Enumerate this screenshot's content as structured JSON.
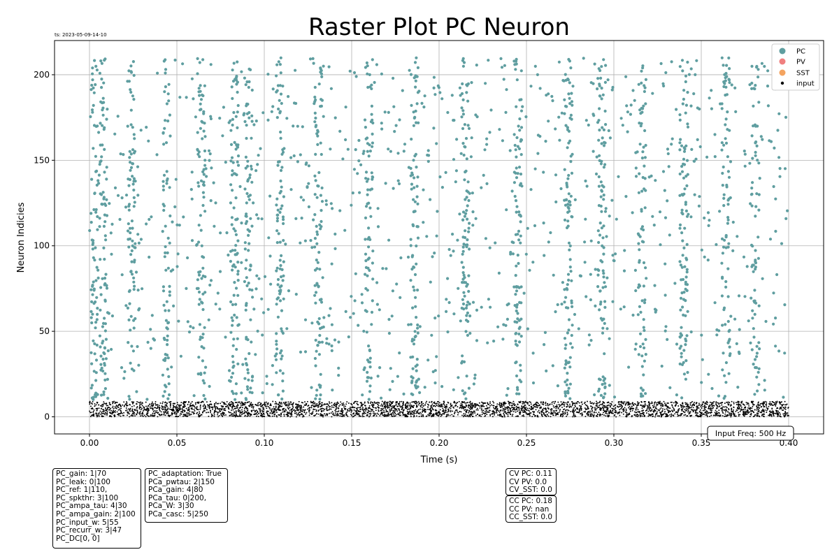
{
  "timestamp": "ts: 2023-05-09-14-10",
  "input_freq": "Input Freq: 500 Hz",
  "param_boxes": {
    "pc": [
      "PC_gain: 1|70",
      "PC_leak: 0|100",
      "PC_ref: 1|110,",
      "PC_spkthr: 3|100",
      "PC_ampa_tau: 4|30",
      "PC_ampa_gain: 2|100",
      "PC_input_w: 5|55",
      "PC_recurr_w: 3|47",
      "PC_DC[0, 0]"
    ],
    "pca": [
      "PC_adaptation: True",
      "PCa_pwtau: 2|150",
      "PCa_gain: 4|80",
      "PCa_tau: 0|200,",
      "PCa_W: 3|30",
      "PCa_casc: 5|250"
    ],
    "cv": [
      "CV PC: 0.11",
      "CV PV: 0.0",
      "CV_SST: 0.0"
    ],
    "cc": [
      "CC PC: 0.18",
      "CC PV: nan",
      "CC_SST: 0.0"
    ]
  },
  "chart_data": {
    "type": "scatter",
    "title": "Raster Plot PC Neuron",
    "xlabel": "Time (s)",
    "ylabel": "Neuron Indicies",
    "xlim": [
      -0.02,
      0.42
    ],
    "ylim": [
      -10,
      220
    ],
    "xticks": [
      0.0,
      0.05,
      0.1,
      0.15,
      0.2,
      0.25,
      0.3,
      0.35,
      0.4
    ],
    "xtick_labels": [
      "0.00",
      "0.05",
      "0.10",
      "0.15",
      "0.20",
      "0.25",
      "0.30",
      "0.35",
      "0.40"
    ],
    "yticks": [
      0,
      50,
      100,
      150,
      200
    ],
    "ytick_labels": [
      "0",
      "50",
      "100",
      "150",
      "200"
    ],
    "grid": true,
    "legend_position": "top-right",
    "series": [
      {
        "name": "PC",
        "color": "#5f9ea0",
        "marker_size": 4,
        "neuron_range": [
          10,
          210
        ],
        "time_range": [
          0.0,
          0.4
        ],
        "approx_spike_count": 2500,
        "burst_centers": [
          0.003,
          0.008,
          0.024,
          0.044,
          0.064,
          0.083,
          0.091,
          0.109,
          0.131,
          0.16,
          0.186,
          0.215,
          0.245,
          0.274,
          0.293,
          0.316,
          0.34,
          0.364,
          0.381
        ],
        "note": "individual spike times not legible; points rendered as banded scatter within these ranges"
      },
      {
        "name": "PV",
        "color": "#f08080",
        "marker_size": 4,
        "points": []
      },
      {
        "name": "SST",
        "color": "#f4a460",
        "marker_size": 4,
        "points": []
      },
      {
        "name": "input",
        "color": "#000000",
        "marker_size": 2,
        "neuron_range": [
          0,
          9
        ],
        "time_range": [
          0.0,
          0.4
        ],
        "approx_spike_count": 4000
      }
    ]
  }
}
